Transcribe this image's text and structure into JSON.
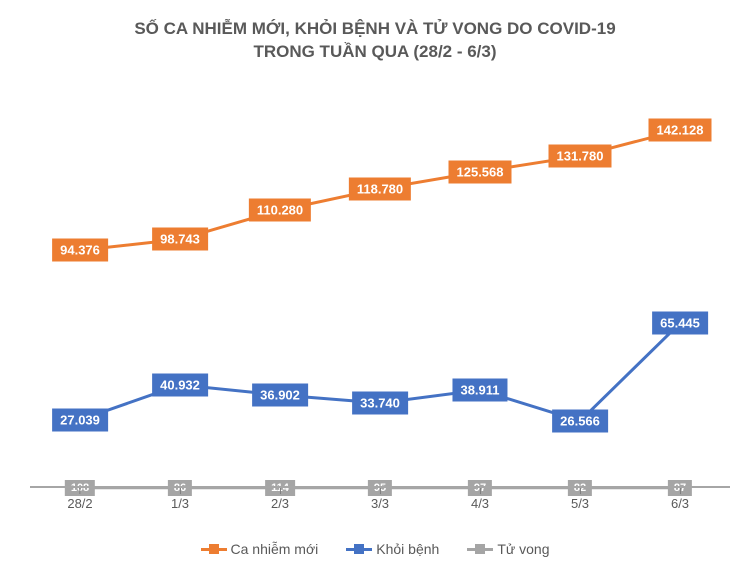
{
  "chart": {
    "type": "line-square-markers",
    "title_line1": "SỐ CA NHIỄM MỚI, KHỎI BỆNH VÀ TỬ VONG DO COVID-19",
    "title_line2": "TRONG TUẦN QUA (28/2 - 6/3)",
    "title_color": "#595959",
    "title_fontsize_pt": 17,
    "background_color": "#ffffff",
    "y_domain": [
      0,
      160000
    ],
    "categories": [
      "28/2",
      "1/3",
      "2/3",
      "3/3",
      "4/3",
      "5/3",
      "6/3"
    ],
    "series": {
      "new_cases": {
        "label": "Ca nhiễm mới",
        "color": "#ed7d31",
        "line_width": 3,
        "marker_padding": [
          4,
          8
        ],
        "marker_fontsize": 13,
        "values": [
          94376,
          98743,
          110280,
          118780,
          125568,
          131780,
          142128
        ],
        "display_values": [
          "94.376",
          "98.743",
          "110.280",
          "118.780",
          "125.568",
          "131.780",
          "142.128"
        ]
      },
      "recovered": {
        "label": "Khỏi bệnh",
        "color": "#4472c4",
        "line_width": 3,
        "marker_padding": [
          4,
          8
        ],
        "marker_fontsize": 13,
        "values": [
          27039,
          40932,
          36902,
          33740,
          38911,
          26566,
          65445
        ],
        "display_values": [
          "27.039",
          "40.932",
          "36.902",
          "33.740",
          "38.911",
          "26.566",
          "65.445"
        ]
      },
      "deaths": {
        "label": "Tử vong",
        "color": "#a5a5a5",
        "line_width": 3,
        "marker_padding": [
          2,
          6
        ],
        "marker_fontsize": 11,
        "values": [
          108,
          86,
          114,
          95,
          97,
          82,
          87
        ],
        "display_values": [
          "108",
          "86",
          "114",
          "95",
          "97",
          "82",
          "87"
        ]
      }
    },
    "axis": {
      "line_color": "#a6a6a6",
      "tick_color": "#7f7f7f",
      "label_color": "#595959",
      "label_fontsize": 13
    },
    "legend": {
      "fontsize": 14,
      "order": [
        "new_cases",
        "recovered",
        "deaths"
      ]
    }
  }
}
